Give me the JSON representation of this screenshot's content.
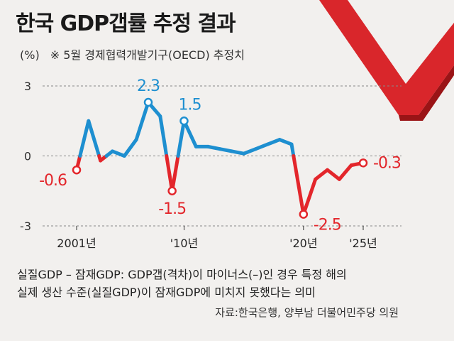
{
  "title": "한국 GDP갭률 추정 결과",
  "subtitle": {
    "unit": "(%)",
    "note": "※ 5월 경제협력개발기구(OECD) 추정치"
  },
  "colors": {
    "positive": "#1e8fd0",
    "negative": "#e3262b",
    "grid": "#888888",
    "accent": "#d9262b"
  },
  "chart_data": {
    "type": "line",
    "title": "한국 GDP갭률 추정 결과",
    "ylabel": "(%)",
    "ylim": [
      -3,
      3
    ],
    "y_ticks": [
      {
        "value": 3,
        "label": "3"
      },
      {
        "value": 0,
        "label": "0"
      },
      {
        "value": -3,
        "label": "-3"
      }
    ],
    "x_ticks": [
      {
        "value": 2001,
        "label": "2001년"
      },
      {
        "value": 2010,
        "label": "'10년"
      },
      {
        "value": 2020,
        "label": "'20년"
      },
      {
        "value": 2025,
        "label": "'25년"
      }
    ],
    "x": [
      2001,
      2002,
      2003,
      2004,
      2005,
      2006,
      2007,
      2008,
      2009,
      2010,
      2011,
      2012,
      2013,
      2014,
      2015,
      2016,
      2017,
      2018,
      2019,
      2020,
      2021,
      2022,
      2023,
      2024,
      2025
    ],
    "values": [
      -0.6,
      1.5,
      -0.2,
      0.2,
      0.0,
      0.7,
      2.3,
      1.7,
      -1.5,
      1.5,
      0.4,
      0.4,
      0.3,
      0.2,
      0.1,
      0.3,
      0.5,
      0.7,
      0.5,
      -2.5,
      -1.0,
      -0.6,
      -1.0,
      -0.4,
      -0.3
    ],
    "annotations": [
      {
        "x": 2001,
        "y": -0.6,
        "label": "-0.6"
      },
      {
        "x": 2007,
        "y": 2.3,
        "label": "2.3"
      },
      {
        "x": 2009,
        "y": -1.5,
        "label": "-1.5"
      },
      {
        "x": 2010,
        "y": 1.5,
        "label": "1.5"
      },
      {
        "x": 2020,
        "y": -2.5,
        "label": "-2.5"
      },
      {
        "x": 2025,
        "y": -0.3,
        "label": "-0.3"
      }
    ]
  },
  "footer": {
    "line1": "실질GDP – 잠재GDP: GDP갭(격차)이 마이너스(–)인 경우 특정 해의",
    "line2": "실제 생산 수준(실질GDP)이 잠재GDP에 미치지 못했다는 의미",
    "source": "자료:한국은행, 양부남 더불어민주당 의원"
  }
}
